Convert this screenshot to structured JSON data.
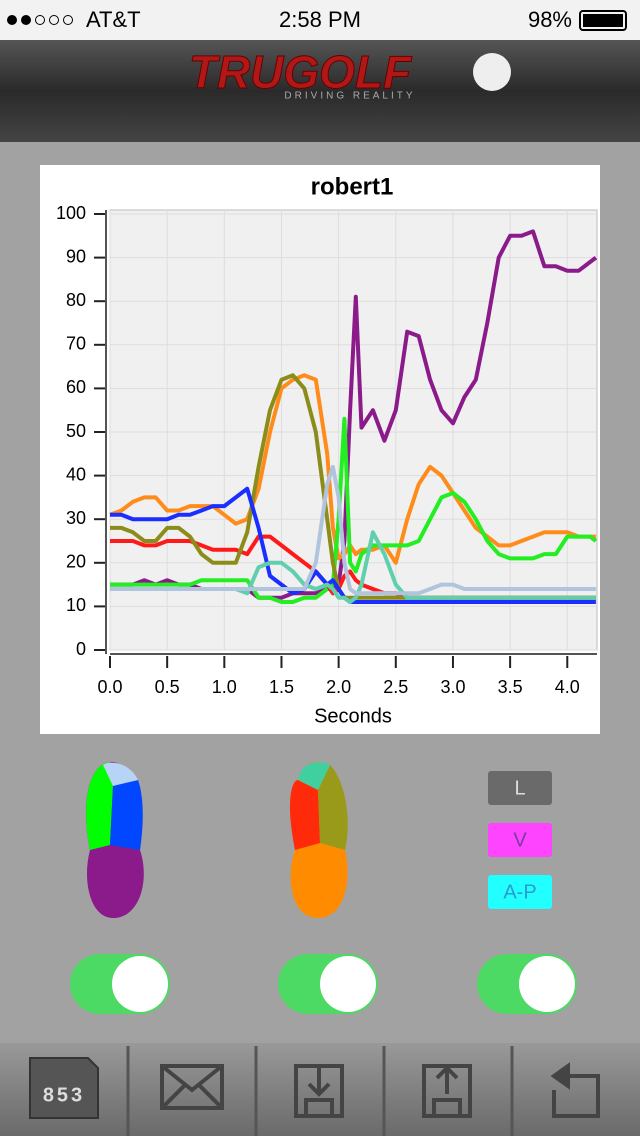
{
  "status_bar": {
    "carrier": "AT&T",
    "time": "2:58 PM",
    "battery": "98%"
  },
  "header": {
    "logo": "TRUGOLF",
    "tagline": "DRIVING REALITY"
  },
  "chart_data": {
    "type": "line",
    "title": "robert1",
    "xlabel": "Seconds",
    "x": [
      0,
      0.1,
      0.2,
      0.3,
      0.4,
      0.5,
      0.6,
      0.7,
      0.8,
      0.9,
      1.0,
      1.1,
      1.2,
      1.3,
      1.4,
      1.5,
      1.6,
      1.7,
      1.8,
      1.9,
      1.95,
      2.0,
      2.05,
      2.1,
      2.15,
      2.2,
      2.3,
      2.4,
      2.5,
      2.6,
      2.7,
      2.8,
      2.9,
      3.0,
      3.1,
      3.2,
      3.3,
      3.4,
      3.5,
      3.6,
      3.7,
      3.8,
      3.9,
      4.0,
      4.1,
      4.2,
      4.25
    ],
    "xlim": [
      0,
      4.26
    ],
    "ylim": [
      0,
      100
    ],
    "xticks": [
      {
        "value": 0,
        "label": "0.0"
      },
      0.5,
      {
        "value": 1,
        "label": "1.0"
      },
      1.5,
      {
        "value": 2,
        "label": "2.0"
      },
      2.5,
      {
        "value": 3,
        "label": "3.0"
      },
      3.5,
      {
        "value": 4,
        "label": "4.0"
      }
    ],
    "yticks": [
      0,
      10,
      20,
      30,
      40,
      50,
      60,
      70,
      80,
      90,
      100
    ],
    "grid": true,
    "series": [
      {
        "color": "#8b1a8b",
        "values": [
          15,
          15,
          15,
          16,
          15,
          16,
          15,
          15,
          14,
          14,
          14,
          14,
          14,
          12,
          12,
          12,
          13,
          13,
          13,
          14,
          14,
          15,
          25,
          55,
          81,
          51,
          55,
          48,
          55,
          73,
          72,
          62,
          55,
          52,
          58,
          62,
          75,
          90,
          95,
          95,
          96,
          88,
          88,
          87,
          87,
          89,
          90
        ]
      },
      {
        "color": "#ff8c1a",
        "values": [
          31,
          32,
          34,
          35,
          35,
          32,
          32,
          33,
          33,
          33,
          31,
          29,
          30,
          37,
          50,
          60,
          62,
          63,
          62,
          45,
          28,
          21,
          22,
          24,
          22,
          23,
          23,
          24,
          20,
          30,
          38,
          42,
          40,
          36,
          32,
          28,
          26,
          24,
          24,
          25,
          26,
          27,
          27,
          27,
          26,
          26,
          26
        ]
      },
      {
        "color": "#22ee22",
        "values": [
          15,
          15,
          15,
          15,
          15,
          15,
          15,
          15,
          16,
          16,
          16,
          16,
          16,
          12,
          12,
          11,
          11,
          12,
          12,
          14,
          15,
          30,
          53,
          20,
          18,
          22,
          24,
          24,
          24,
          24,
          25,
          30,
          35,
          36,
          34,
          30,
          25,
          22,
          21,
          21,
          21,
          22,
          22,
          26,
          26,
          26,
          25
        ]
      },
      {
        "color": "#ff1a1a",
        "values": [
          25,
          25,
          25,
          24,
          24,
          25,
          25,
          25,
          24,
          23,
          23,
          23,
          22,
          26,
          26,
          24,
          22,
          20,
          18,
          15,
          13,
          14,
          17,
          18,
          16,
          15,
          14,
          13,
          13,
          12,
          12,
          12,
          12,
          12,
          12,
          12,
          12,
          12,
          12,
          12,
          12,
          12,
          12,
          12,
          12,
          12,
          12
        ]
      },
      {
        "color": "#8c8c1a",
        "values": [
          28,
          28,
          27,
          25,
          25,
          28,
          28,
          26,
          22,
          20,
          20,
          20,
          27,
          42,
          55,
          62,
          63,
          60,
          50,
          30,
          20,
          14,
          12,
          12,
          12,
          12,
          12,
          12,
          12,
          12,
          12,
          12,
          12,
          12,
          12,
          12,
          12,
          12,
          12,
          12,
          12,
          12,
          12,
          12,
          12,
          12,
          12
        ]
      },
      {
        "color": "#1a2eff",
        "values": [
          31,
          31,
          30,
          30,
          30,
          30,
          31,
          31,
          32,
          33,
          33,
          35,
          37,
          28,
          17,
          15,
          13,
          14,
          18,
          15,
          16,
          14,
          12,
          11,
          11,
          11,
          11,
          11,
          11,
          11,
          11,
          11,
          11,
          11,
          11,
          11,
          11,
          11,
          11,
          11,
          11,
          11,
          11,
          11,
          11,
          11,
          11
        ]
      },
      {
        "color": "#5fcfae",
        "values": [
          14,
          14,
          14,
          14,
          14,
          14,
          14,
          14,
          14,
          14,
          14,
          14,
          13,
          19,
          20,
          20,
          18,
          15,
          14,
          15,
          14,
          12,
          12,
          11,
          12,
          15,
          27,
          22,
          15,
          12,
          12,
          12,
          12,
          12,
          12,
          12,
          12,
          12,
          12,
          12,
          12,
          12,
          12,
          12,
          12,
          12,
          12
        ]
      },
      {
        "color": "#b0c4de",
        "values": [
          14,
          14,
          14,
          14,
          14,
          14,
          14,
          14,
          14,
          14,
          14,
          14,
          14,
          14,
          14,
          14,
          14,
          14,
          20,
          38,
          42,
          35,
          20,
          14,
          13,
          13,
          13,
          13,
          13,
          13,
          13,
          14,
          15,
          15,
          14,
          14,
          14,
          14,
          14,
          14,
          14,
          14,
          14,
          14,
          14,
          14,
          14
        ]
      }
    ]
  },
  "buttons": [
    "L",
    "V",
    "A-P"
  ],
  "toolbar": {
    "counter": "853"
  }
}
